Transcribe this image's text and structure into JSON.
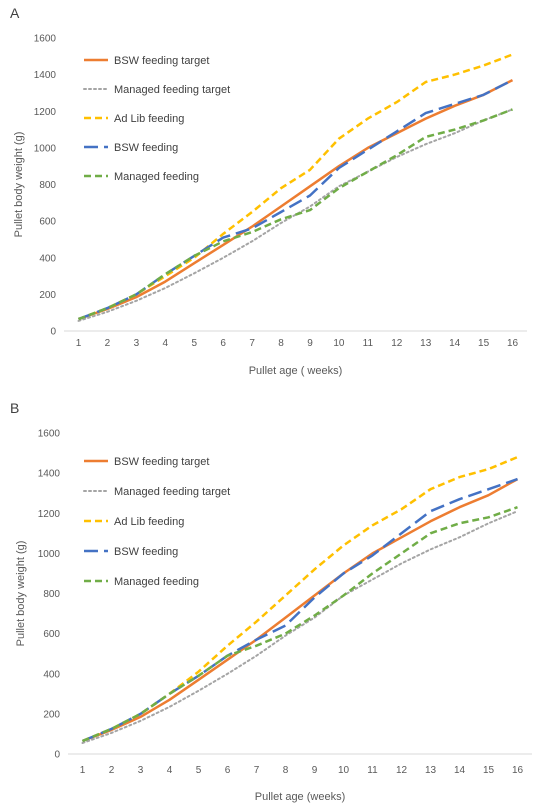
{
  "chart_data": [
    {
      "panel_label": "A",
      "type": "line",
      "x": [
        1,
        2,
        3,
        4,
        5,
        6,
        7,
        8,
        9,
        10,
        11,
        12,
        13,
        14,
        15,
        16
      ],
      "xlabel": "Pullet age ( weeks)",
      "ylabel": "Pullet body weight (g)",
      "ylim": [
        0,
        1600
      ],
      "yticks": [
        0,
        200,
        400,
        600,
        800,
        1000,
        1200,
        1400,
        1600
      ],
      "grid": false,
      "legend_position": "top-left",
      "series": [
        {
          "name": "BSW feeding target",
          "color": "#ED7D31",
          "style": "solid",
          "values": [
            65,
            120,
            185,
            270,
            370,
            470,
            570,
            680,
            790,
            900,
            1000,
            1080,
            1160,
            1230,
            1290,
            1370
          ]
        },
        {
          "name": "Managed feeding target",
          "color": "#A5A5A5",
          "style": "dotted",
          "values": [
            55,
            105,
            165,
            235,
            315,
            400,
            490,
            590,
            680,
            790,
            870,
            950,
            1020,
            1080,
            1150,
            1210
          ]
        },
        {
          "name": "Ad Lib feeding",
          "color": "#FFC000",
          "style": "dash",
          "values": [
            65,
            125,
            200,
            300,
            400,
            530,
            650,
            780,
            880,
            1050,
            1160,
            1250,
            1360,
            1400,
            1450,
            1510
          ]
        },
        {
          "name": "BSW feeding",
          "color": "#4472C4",
          "style": "longdash",
          "values": [
            65,
            125,
            200,
            310,
            410,
            510,
            560,
            650,
            740,
            890,
            990,
            1090,
            1190,
            1240,
            1290,
            1370
          ]
        },
        {
          "name": "Managed  feeding",
          "color": "#70AD47",
          "style": "dash",
          "values": [
            65,
            125,
            200,
            310,
            410,
            490,
            540,
            610,
            660,
            780,
            870,
            960,
            1060,
            1100,
            1150,
            1210
          ]
        }
      ]
    },
    {
      "panel_label": "B",
      "type": "line",
      "x": [
        1,
        2,
        3,
        4,
        5,
        6,
        7,
        8,
        9,
        10,
        11,
        12,
        13,
        14,
        15,
        16
      ],
      "xlabel": "Pullet age (weeks)",
      "ylabel": "Pullet body weight (g)",
      "ylim": [
        0,
        1600
      ],
      "yticks": [
        0,
        200,
        400,
        600,
        800,
        1000,
        1200,
        1400,
        1600
      ],
      "grid": false,
      "legend_position": "top-left",
      "series": [
        {
          "name": "BSW feeding target",
          "color": "#ED7D31",
          "style": "solid",
          "values": [
            65,
            120,
            185,
            270,
            370,
            470,
            570,
            680,
            790,
            900,
            1000,
            1080,
            1160,
            1230,
            1290,
            1370
          ]
        },
        {
          "name": "Managed feeding target",
          "color": "#A5A5A5",
          "style": "dotted",
          "values": [
            55,
            105,
            165,
            235,
            315,
            400,
            490,
            590,
            680,
            790,
            870,
            950,
            1020,
            1080,
            1150,
            1210
          ]
        },
        {
          "name": "Ad Lib feeding",
          "color": "#FFC000",
          "style": "dash",
          "values": [
            65,
            125,
            200,
            300,
            410,
            540,
            660,
            790,
            920,
            1040,
            1140,
            1220,
            1320,
            1380,
            1420,
            1480
          ]
        },
        {
          "name": "BSW feeding",
          "color": "#4472C4",
          "style": "longdash",
          "values": [
            65,
            125,
            200,
            300,
            390,
            490,
            570,
            640,
            780,
            900,
            990,
            1100,
            1210,
            1270,
            1320,
            1370
          ]
        },
        {
          "name": "Managed  feeding",
          "color": "#70AD47",
          "style": "dash",
          "values": [
            65,
            125,
            200,
            300,
            390,
            490,
            540,
            600,
            690,
            790,
            900,
            1000,
            1100,
            1150,
            1180,
            1230
          ]
        }
      ]
    }
  ]
}
